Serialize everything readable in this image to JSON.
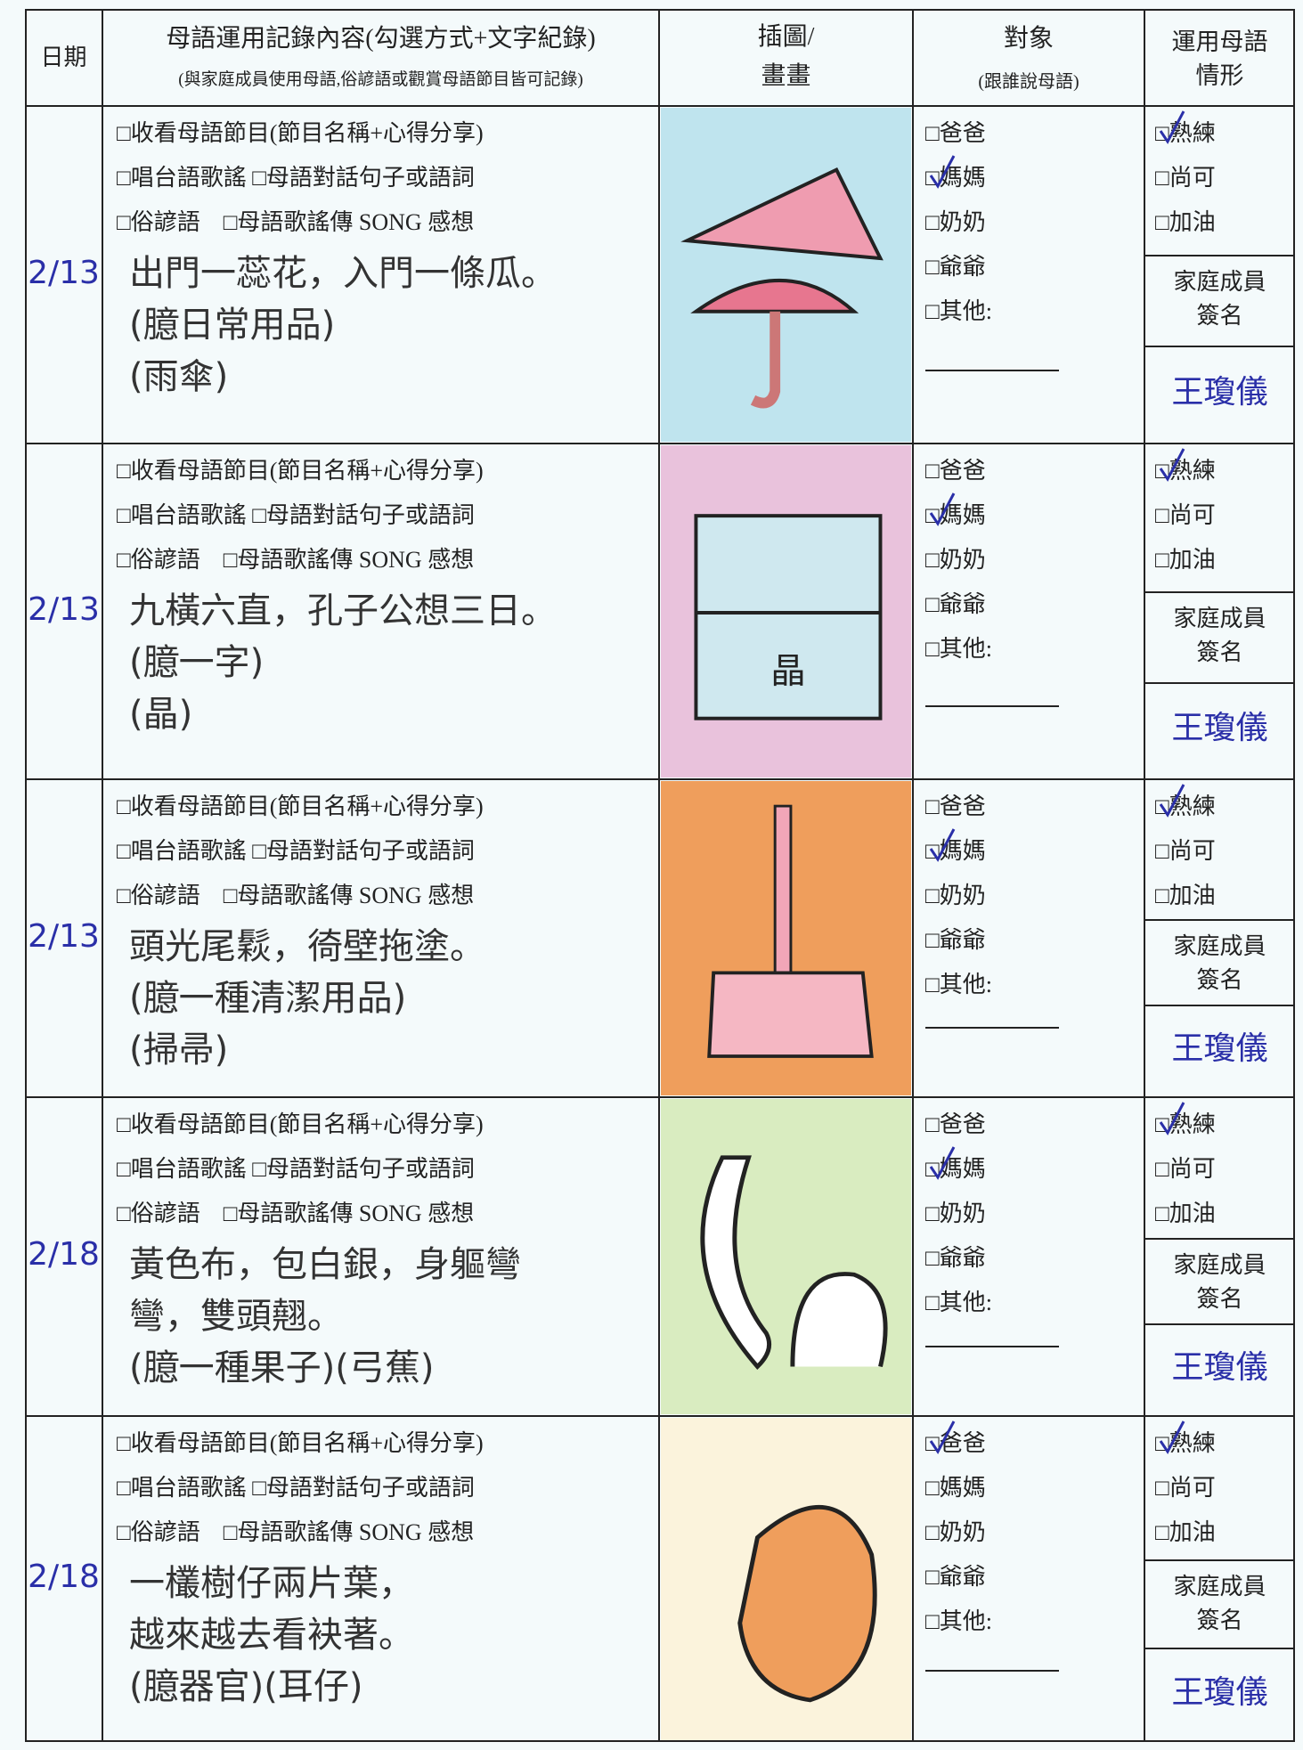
{
  "header": {
    "date": "日期",
    "content": "母語運用記錄內容(勾選方式+文字紀錄)",
    "content_note": "(與家庭成員使用母語,俗諺語或觀賞母語節目皆可記錄)",
    "picture": [
      "插圖/",
      "畫畫"
    ],
    "target": "對象",
    "target_note": "(跟誰說母語)",
    "status": [
      "運用母語",
      "情形"
    ]
  },
  "options": [
    "□收看母語節目(節目名稱+心得分享)",
    "□唱台語歌謠 □母語對話句子或語詞",
    "□俗諺語　□母語歌謠傳 SONG 感想"
  ],
  "targets": [
    "□爸爸",
    "□媽媽",
    "□奶奶",
    "□爺爺",
    "□其他:"
  ],
  "levels": [
    "□熟練",
    "□尚可",
    "□加油"
  ],
  "sign_label": [
    "家庭成員",
    "簽名"
  ],
  "rows": [
    {
      "date": "2/13",
      "lines": [
        "出門一蕊花，入門一條瓜。",
        "(臆日常用品)",
        "(雨傘)"
      ],
      "target": "□媽媽",
      "level": "□熟練",
      "signature": "王瓊儀"
    },
    {
      "date": "2/13",
      "lines": [
        "九橫六直，孔子公想三日。",
        "(臆一字)",
        "(晶)"
      ],
      "target": "□媽媽",
      "level": "□熟練",
      "signature": "王瓊儀"
    },
    {
      "date": "2/13",
      "lines": [
        "頭光尾鬏，徛壁拖塗。",
        "(臆一種清潔用品)",
        "(掃帚)"
      ],
      "target": "□媽媽",
      "level": "□熟練",
      "signature": "王瓊儀"
    },
    {
      "date": "2/18",
      "lines": [
        "黃色布，包白銀，身軀彎",
        "彎，雙頭翹。",
        "(臆一種果子)(弓蕉)"
      ],
      "target": "□媽媽",
      "level": "□熟練",
      "signature": "王瓊儀"
    },
    {
      "date": "2/18",
      "lines": [
        "一欉樹仔兩片葉，",
        "越來越去看袂著。",
        "(臆器官)(耳仔)"
      ],
      "target": "□爸爸",
      "level": "□熟練",
      "signature": "王瓊儀"
    }
  ]
}
